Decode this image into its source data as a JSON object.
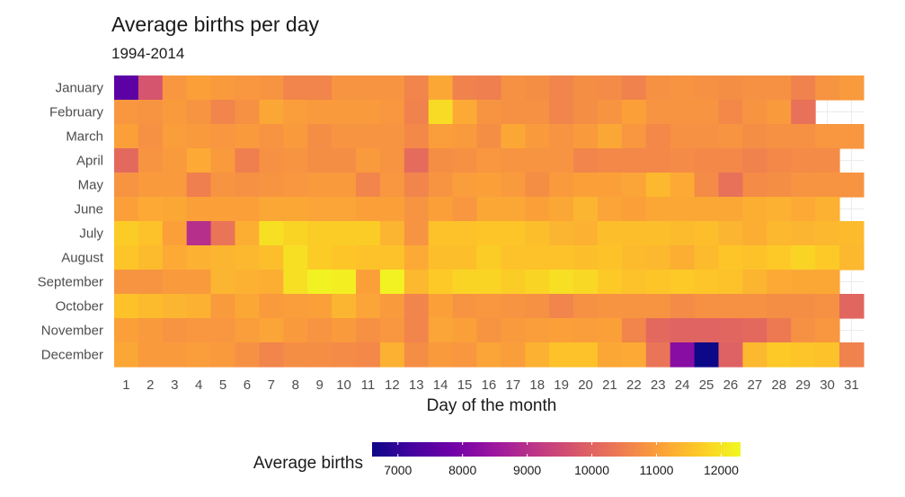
{
  "chart_data": {
    "type": "heatmap",
    "title": "Average births per day",
    "subtitle": "1994-2014",
    "xlabel": "Day of the month",
    "ylabel": "",
    "x": [
      "1",
      "2",
      "3",
      "4",
      "5",
      "6",
      "7",
      "8",
      "9",
      "10",
      "11",
      "12",
      "13",
      "14",
      "15",
      "16",
      "17",
      "18",
      "19",
      "20",
      "21",
      "22",
      "23",
      "24",
      "25",
      "26",
      "27",
      "28",
      "29",
      "30",
      "31"
    ],
    "y": [
      "January",
      "February",
      "March",
      "April",
      "May",
      "June",
      "July",
      "August",
      "September",
      "October",
      "November",
      "December"
    ],
    "values": [
      [
        7550,
        9700,
        10900,
        11050,
        10950,
        10900,
        10850,
        10600,
        10600,
        10850,
        10850,
        10850,
        10600,
        11150,
        10550,
        10500,
        10800,
        10750,
        10600,
        10750,
        10700,
        10550,
        10800,
        10850,
        10800,
        10750,
        10800,
        10800,
        10550,
        10850,
        10950
      ],
      [
        10900,
        10850,
        10950,
        10850,
        10600,
        10800,
        11150,
        11000,
        10950,
        10950,
        10950,
        10900,
        10550,
        11900,
        11200,
        10850,
        10800,
        10800,
        10600,
        10750,
        10850,
        11050,
        10850,
        10850,
        10850,
        10650,
        10850,
        10950,
        10250,
        null,
        null
      ],
      [
        11050,
        10800,
        11000,
        10950,
        10900,
        10950,
        10850,
        10950,
        10750,
        10850,
        10850,
        10850,
        10650,
        11000,
        10950,
        10750,
        11150,
        10950,
        10850,
        10950,
        11150,
        10900,
        10650,
        10800,
        10800,
        10850,
        10750,
        10800,
        10800,
        10900,
        10900
      ],
      [
        10100,
        10850,
        10950,
        11200,
        10950,
        10500,
        10800,
        10850,
        10750,
        10750,
        10950,
        10850,
        10150,
        10750,
        10800,
        10900,
        10850,
        10850,
        10850,
        10600,
        10650,
        10650,
        10650,
        10700,
        10650,
        10650,
        10550,
        10650,
        10700,
        10700,
        null
      ],
      [
        10850,
        10950,
        10950,
        10500,
        10850,
        10800,
        10850,
        10900,
        10950,
        10950,
        10600,
        10900,
        10600,
        10850,
        11000,
        11050,
        10950,
        10750,
        10950,
        11050,
        11050,
        11100,
        11400,
        11200,
        10700,
        10250,
        10700,
        10750,
        10850,
        10850,
        10850
      ],
      [
        11050,
        11200,
        11150,
        11050,
        11050,
        11050,
        11150,
        11150,
        11100,
        11100,
        11050,
        11050,
        10850,
        11050,
        10900,
        11150,
        11150,
        11050,
        11150,
        11350,
        11100,
        11050,
        11150,
        11150,
        11150,
        11150,
        11250,
        11300,
        11200,
        11300,
        null
      ],
      [
        11700,
        11550,
        11050,
        9000,
        10300,
        11250,
        11950,
        11800,
        11700,
        11700,
        11700,
        11350,
        10850,
        11550,
        11550,
        11600,
        11600,
        11500,
        11350,
        11300,
        11500,
        11500,
        11500,
        11450,
        11500,
        11350,
        11250,
        11400,
        11350,
        11400,
        11450
      ],
      [
        11600,
        11450,
        11200,
        11300,
        11350,
        11400,
        11500,
        11950,
        11700,
        11600,
        11550,
        11550,
        11200,
        11500,
        11500,
        11700,
        11550,
        11550,
        11550,
        11500,
        11550,
        11450,
        11400,
        11250,
        11450,
        11600,
        11550,
        11650,
        11800,
        11650,
        11400
      ],
      [
        10850,
        10850,
        10950,
        10950,
        11350,
        11300,
        11250,
        11950,
        12200,
        12150,
        11050,
        12200,
        11400,
        11650,
        11800,
        11800,
        11700,
        11800,
        11950,
        11850,
        11650,
        11550,
        11600,
        11650,
        11600,
        11550,
        11350,
        11200,
        11150,
        11150,
        null
      ],
      [
        11550,
        11450,
        11350,
        11300,
        10950,
        11150,
        10950,
        11000,
        11050,
        11350,
        11100,
        10950,
        10600,
        11050,
        10850,
        10900,
        10850,
        10800,
        10600,
        10800,
        10850,
        10850,
        10850,
        10700,
        10800,
        10800,
        10800,
        10750,
        10750,
        10800,
        10050
      ],
      [
        11050,
        10950,
        10850,
        10900,
        10900,
        11000,
        11100,
        10950,
        10850,
        10950,
        10800,
        10900,
        10600,
        11100,
        11050,
        10850,
        10950,
        11000,
        11050,
        11000,
        11050,
        10600,
        10100,
        10000,
        10000,
        10050,
        10100,
        10400,
        10800,
        10900,
        null
      ],
      [
        11150,
        10950,
        10950,
        11000,
        10950,
        10800,
        10600,
        10750,
        10750,
        10700,
        10650,
        11300,
        10750,
        10950,
        10900,
        11100,
        11000,
        11300,
        11550,
        11550,
        11150,
        11200,
        10300,
        8200,
        6600,
        9950,
        11400,
        11650,
        11600,
        11550,
        10550
      ]
    ],
    "colorbar": {
      "title": "Average births",
      "ticks": [
        7000,
        8000,
        9000,
        10000,
        11000,
        12000
      ],
      "min": 6600,
      "max": 12300
    },
    "colormap": [
      "#0d0887",
      "#46039f",
      "#7201a8",
      "#9c179e",
      "#bd3786",
      "#d8576b",
      "#ed7953",
      "#fb9f3a",
      "#fdca26",
      "#f0f921"
    ],
    "missing_color": "#ffffff",
    "grid": true,
    "legend_position": "bottom"
  }
}
